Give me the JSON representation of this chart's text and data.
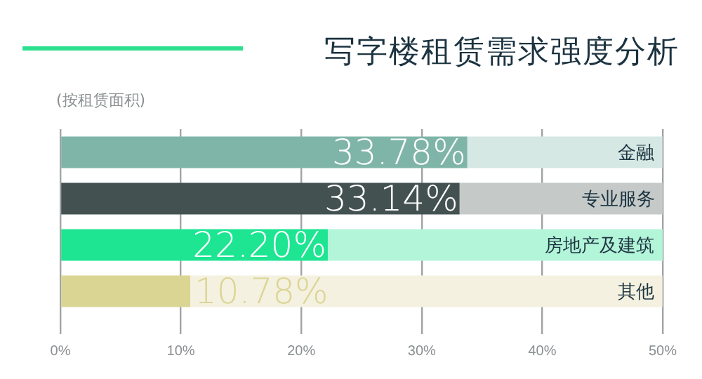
{
  "chart_data": {
    "type": "bar",
    "orientation": "horizontal",
    "stacked": true,
    "title": "写字楼租赁需求强度分析",
    "subtitle": "(按租赁面积)",
    "categories": [
      "金融",
      "专业服务",
      "房地产及建筑",
      "其他"
    ],
    "series": [
      {
        "colors": [
          "#7fb5a8",
          "#435250",
          "#1de592",
          "#dbd594"
        ],
        "values": [
          33.78,
          33.14,
          22.2,
          10.78
        ],
        "value_labels": [
          "33.78%",
          "33.14%",
          "22.20%",
          "10.78%"
        ]
      },
      {
        "colors": [
          "#d6e8e3",
          "#c5cac9",
          "#b3f5d9",
          "#f4f1e0"
        ],
        "values": [
          16.2,
          16.9,
          27.8,
          39.2
        ]
      }
    ],
    "xlim": [
      0,
      50
    ],
    "xticks": [
      {
        "value": 0,
        "label": "0%"
      },
      {
        "value": 10,
        "label": "10%"
      },
      {
        "value": 20,
        "label": "20%"
      },
      {
        "value": 30,
        "label": "30%"
      },
      {
        "value": 40,
        "label": "40%"
      },
      {
        "value": 50,
        "label": "50%"
      }
    ],
    "grid": "x",
    "legend": false
  }
}
